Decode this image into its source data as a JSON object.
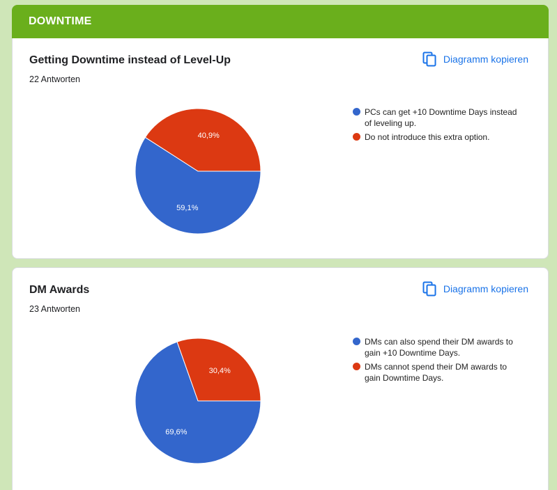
{
  "section": {
    "title": "DOWNTIME"
  },
  "colors": {
    "blue": "#3366cc",
    "red": "#dc3912",
    "accent": "#1a73e8",
    "header": "#6aaf1c"
  },
  "copy_button": {
    "label": "Diagramm kopieren",
    "icon": "copy-icon"
  },
  "questions": [
    {
      "title": "Getting Downtime instead of Level-Up",
      "responses": "22 Antworten"
    },
    {
      "title": "DM Awards",
      "responses": "23 Antworten"
    }
  ],
  "chart_data": [
    {
      "type": "pie",
      "slices": [
        {
          "label": "PCs can get +10 Downtime Days instead of leveling up.",
          "value": 59.1,
          "display": "59,1%",
          "color": "#3366cc"
        },
        {
          "label": "Do not introduce this extra option.",
          "value": 40.9,
          "display": "40,9%",
          "color": "#dc3912"
        }
      ],
      "legend": "right"
    },
    {
      "type": "pie",
      "slices": [
        {
          "label": "DMs can also spend their DM awards to gain +10 Downtime Days.",
          "value": 69.6,
          "display": "69,6%",
          "color": "#3366cc"
        },
        {
          "label": "DMs cannot spend their DM awards to gain Downtime Days.",
          "value": 30.4,
          "display": "30,4%",
          "color": "#dc3912"
        }
      ],
      "legend": "right"
    }
  ]
}
